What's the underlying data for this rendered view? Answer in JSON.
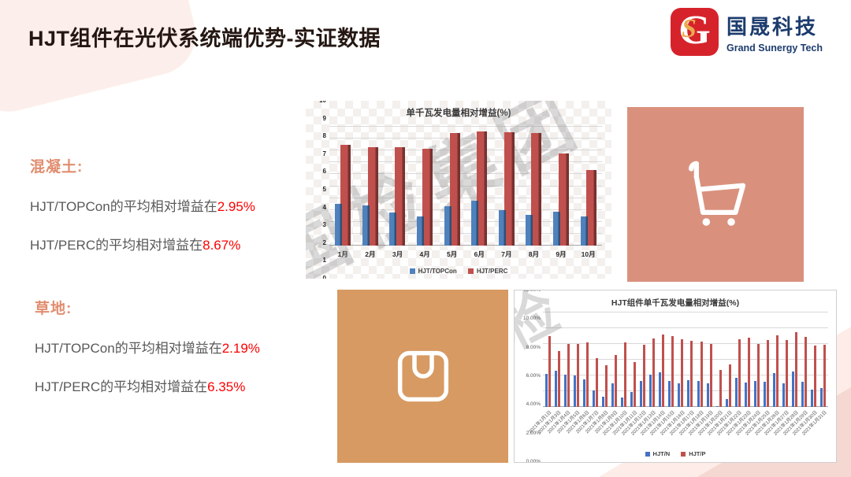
{
  "slide": {
    "title": "HJT组件在光伏系统端优势-实证数据"
  },
  "logo": {
    "glyph_g": "G",
    "glyph_s": "S",
    "brand_cn": "国晟科技",
    "brand_en": "Grand Sunergy Tech",
    "mark_color": "#D6232B",
    "text_color": "#1D3C6E",
    "gold_color": "#EBA94E"
  },
  "stats": {
    "concrete": {
      "heading": "混凝土:",
      "lines": [
        {
          "prefix": "HJT/TOPCon的平均相对增益在",
          "value": "2.95%"
        },
        {
          "prefix": "HJT/PERC的平均相对增益在",
          "value": "8.67%"
        }
      ]
    },
    "grass": {
      "heading": "草地:",
      "lines": [
        {
          "prefix": "HJT/TOPCon的平均相对增益在",
          "value": "2.19%"
        },
        {
          "prefix": "HJT/PERC的平均相对增益在",
          "value": "6.35%"
        }
      ]
    }
  },
  "watermark": {
    "text": "国检集团",
    "fragment": "检"
  },
  "tiles": {
    "cart": {
      "color": "#D9917D",
      "icon": "shopping-cart"
    },
    "bag": {
      "color": "#D79A62",
      "icon": "shopping-bag"
    }
  },
  "chart_data": [
    {
      "type": "bar",
      "style": "3d-clustered",
      "title": "单千瓦发电量相对增益(%)",
      "categories": [
        "1月",
        "2月",
        "3月",
        "4月",
        "5月",
        "6月",
        "7月",
        "8月",
        "9月",
        "10月"
      ],
      "series": [
        {
          "name": "HJT/TOPCon",
          "color": "#4F81BD",
          "values": [
            3.5,
            3.4,
            2.75,
            2.45,
            3.3,
            3.8,
            3.0,
            2.6,
            2.85,
            2.45
          ]
        },
        {
          "name": "HJT/PERC",
          "color": "#C0504D",
          "values": [
            8.5,
            8.3,
            8.25,
            8.15,
            9.45,
            9.6,
            9.55,
            9.5,
            7.75,
            6.35
          ]
        }
      ],
      "xlabel": "",
      "ylabel": "",
      "ylim": [
        0,
        10
      ],
      "ytick_step": 1,
      "ytick_format": "int",
      "grid": true,
      "legend_position": "bottom"
    },
    {
      "type": "bar",
      "style": "flat-clustered",
      "title": "HJT组件单千瓦发电量相对增益(%)",
      "categories": [
        "2021年1月1日",
        "2021年1月3日",
        "2021年1月4日",
        "2021年1月5日",
        "2021年1月6日",
        "2021年1月7日",
        "2021年1月8日",
        "2021年1月9日",
        "2021年1月10日",
        "2021年1月11日",
        "2021年1月12日",
        "2021年1月13日",
        "2021年1月14日",
        "2021年1月15日",
        "2021年1月16日",
        "2021年1月17日",
        "2021年1月18日",
        "2021年1月19日",
        "2021年1月20日",
        "2021年1月21日",
        "2021年1月22日",
        "2021年1月23日",
        "2021年1月24日",
        "2021年1月25日",
        "2021年1月26日",
        "2021年1月27日",
        "2021年1月28日",
        "2021年1月29日",
        "2021年1月30日",
        "2021年1月31日"
      ],
      "series": [
        {
          "name": "HJT/N",
          "color": "#4472C4",
          "values": [
            4.2,
            4.6,
            4.1,
            4.0,
            3.55,
            2.1,
            1.35,
            3.0,
            1.2,
            1.95,
            3.3,
            4.1,
            4.4,
            3.3,
            3.0,
            3.4,
            3.3,
            3.05,
            0.15,
            1.05,
            3.75,
            3.15,
            3.3,
            3.25,
            4.3,
            3.0,
            4.5,
            3.2,
            2.25,
            2.4
          ]
        },
        {
          "name": "HJT/P",
          "color": "#C0504D",
          "values": [
            9.0,
            7.1,
            8.0,
            8.05,
            8.2,
            6.2,
            5.3,
            6.6,
            8.25,
            5.7,
            7.9,
            8.7,
            9.25,
            9.05,
            8.6,
            8.45,
            8.35,
            8.05,
            4.75,
            5.4,
            8.6,
            8.8,
            8.05,
            8.5,
            9.1,
            8.5,
            9.55,
            8.9,
            7.8,
            7.9
          ]
        }
      ],
      "xlabel": "",
      "ylabel": "",
      "ylim": [
        0,
        12
      ],
      "ytick_step": 2,
      "ytick_format": "percent2",
      "grid": true,
      "legend_position": "bottom",
      "xlabel_rotation": -45
    }
  ]
}
